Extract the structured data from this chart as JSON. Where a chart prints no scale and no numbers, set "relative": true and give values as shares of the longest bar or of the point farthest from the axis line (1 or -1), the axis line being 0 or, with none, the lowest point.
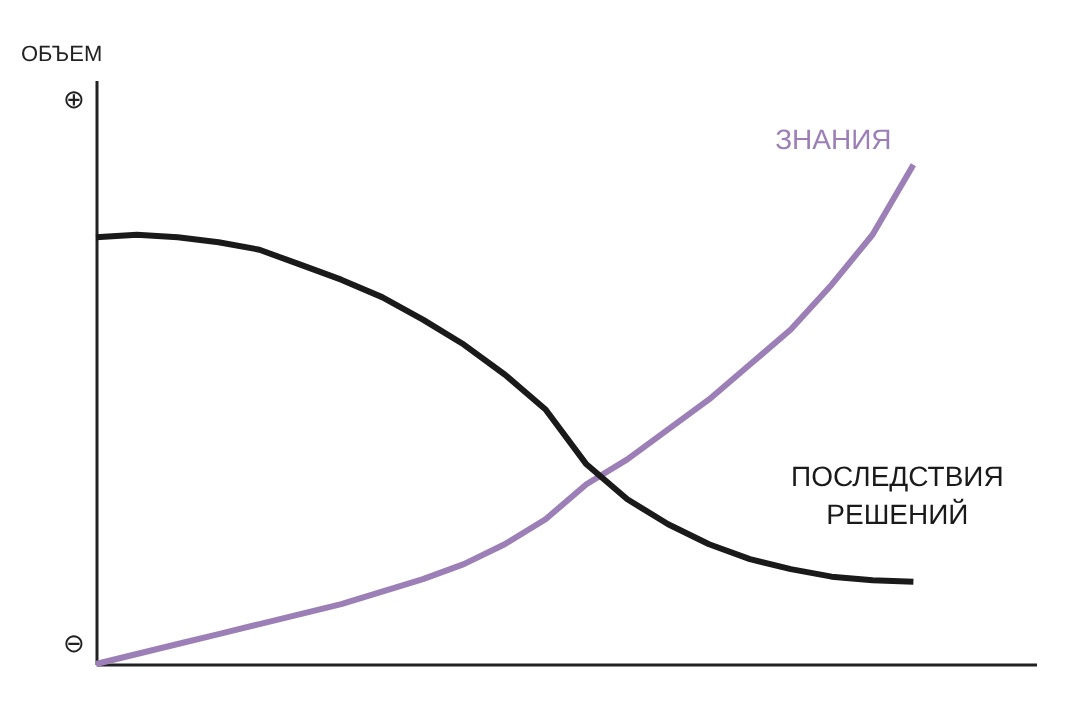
{
  "chart_data": {
    "type": "line",
    "relative": true,
    "ylabel": "ОБЪЕМ",
    "categories": [
      null,
      null,
      null,
      null,
      null,
      null,
      null,
      null,
      null,
      null,
      null,
      null,
      null,
      null,
      null,
      null,
      null,
      null,
      null,
      null,
      null
    ],
    "annotations": [
      "⊕",
      "⊖"
    ],
    "series": [
      {
        "name": "ЗНАНИЯ",
        "color": "#9b7fb6",
        "values": [
          0,
          0.02,
          0.04,
          0.06,
          0.08,
          0.1,
          0.12,
          0.145,
          0.17,
          0.2,
          0.24,
          0.29,
          0.36,
          0.41,
          0.47,
          0.53,
          0.6,
          0.67,
          0.76,
          0.86,
          1.0
        ]
      },
      {
        "name": "ПОСЛЕДСТВИЯ РЕШЕНИЙ",
        "color": "#1a1a1a",
        "values": [
          0.855,
          0.86,
          0.855,
          0.845,
          0.83,
          0.8,
          0.77,
          0.735,
          0.69,
          0.64,
          0.58,
          0.51,
          0.4,
          0.33,
          0.28,
          0.24,
          0.21,
          0.19,
          0.175,
          0.168,
          0.165
        ]
      }
    ],
    "tick_labels": false,
    "line_style": "solid"
  }
}
